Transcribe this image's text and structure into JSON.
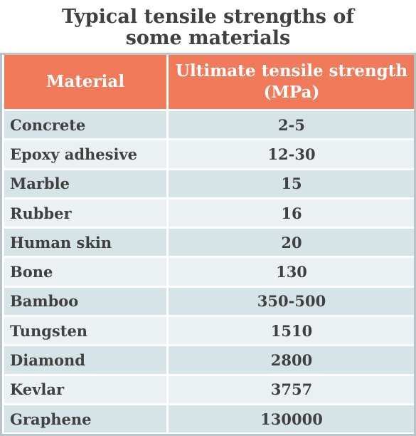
{
  "title": {
    "line1": "Typical tensile strengths of",
    "line2": "some materials"
  },
  "table": {
    "header": {
      "material": "Material",
      "strength_line1": "Ultimate tensile strength",
      "strength_line2": "(MPa)"
    },
    "rows": [
      {
        "material": "Concrete",
        "value": "2-5"
      },
      {
        "material": "Epoxy adhesive",
        "value": "12-30"
      },
      {
        "material": "Marble",
        "value": "15"
      },
      {
        "material": "Rubber",
        "value": "16"
      },
      {
        "material": "Human skin",
        "value": "20"
      },
      {
        "material": "Bone",
        "value": "130"
      },
      {
        "material": "Bamboo",
        "value": "350-500"
      },
      {
        "material": "Tungsten",
        "value": "1510"
      },
      {
        "material": "Diamond",
        "value": "2800"
      },
      {
        "material": "Kevlar",
        "value": "3757"
      },
      {
        "material": "Graphene",
        "value": "130000"
      }
    ]
  },
  "colors": {
    "header_bg": "#f07a59",
    "row_dark": "#d6e3e7",
    "row_light": "#ebf1f3",
    "text": "#404040"
  }
}
